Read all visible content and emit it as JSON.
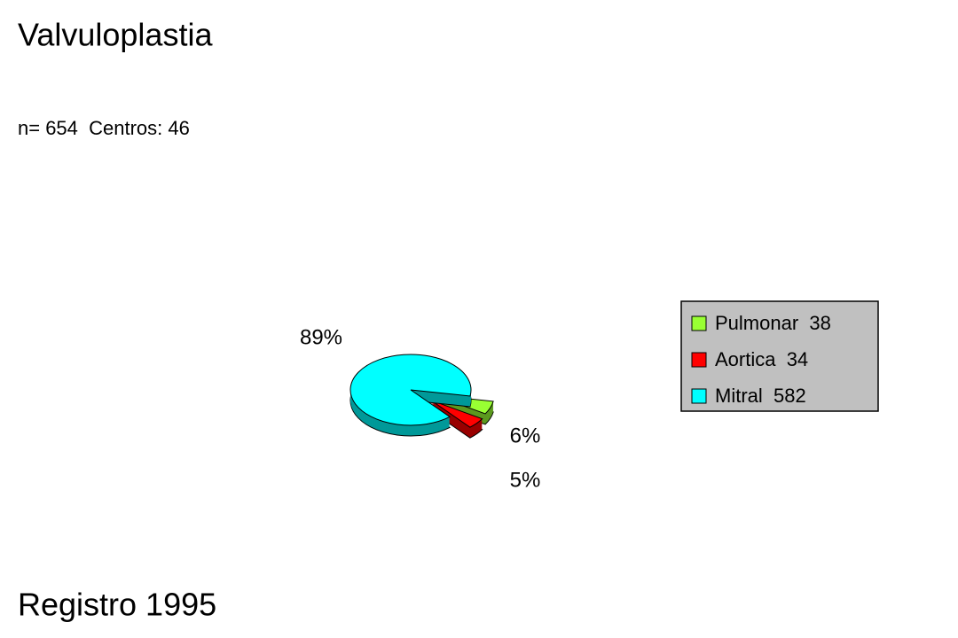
{
  "chart_data": {
    "type": "pie",
    "title": "Valvuloplastia",
    "subtitle": "n= 654  Centros: 46",
    "footer": "Registro 1995",
    "categories": [
      "Pulmonar  38",
      "Aortica  34",
      "Mitral  582"
    ],
    "values": [
      6,
      5,
      89
    ],
    "value_labels": [
      "6%",
      "5%",
      "89%"
    ],
    "colors": [
      "#99ff33",
      "#ff0000",
      "#00ffff"
    ],
    "legend": "right"
  }
}
